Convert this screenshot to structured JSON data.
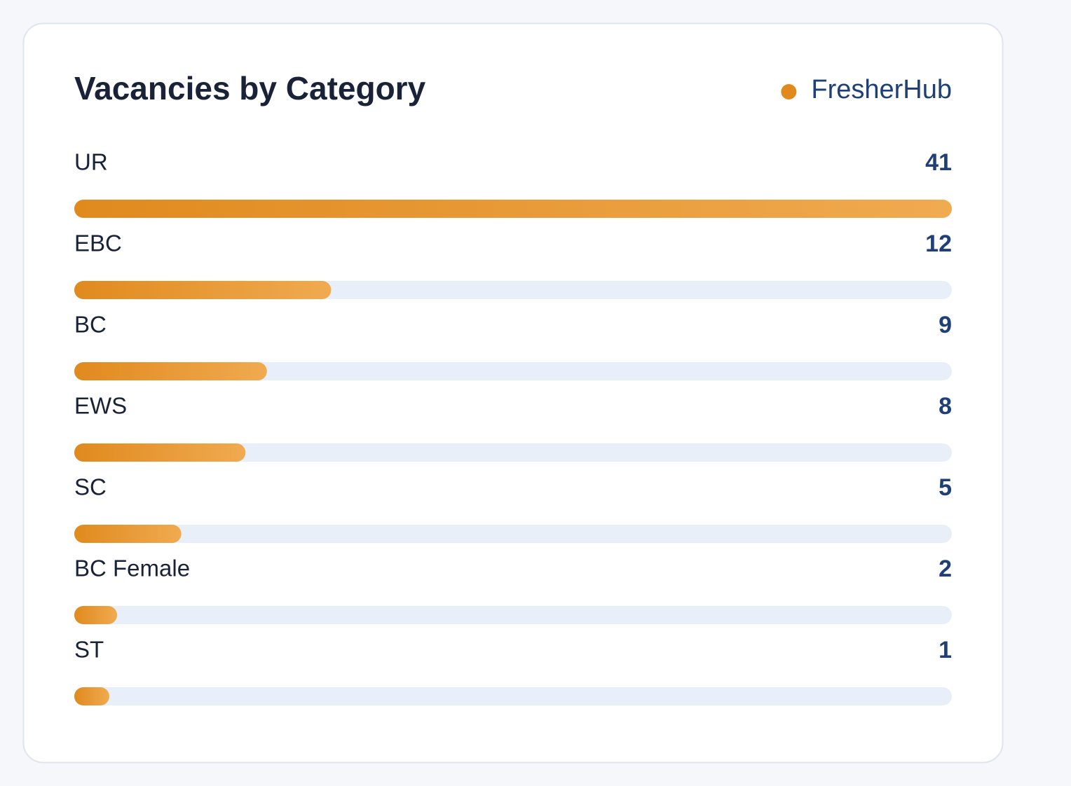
{
  "chart_data": {
    "type": "bar",
    "orientation": "horizontal",
    "title": "Vacancies by Category",
    "categories": [
      "UR",
      "EBC",
      "BC",
      "EWS",
      "SC",
      "BC Female",
      "ST"
    ],
    "series": [
      {
        "name": "FresherHub",
        "color": "#e08a1e",
        "values": [
          41,
          12,
          9,
          8,
          5,
          2,
          1
        ]
      }
    ],
    "xlim": [
      0,
      41
    ],
    "legend": "top-right"
  }
}
